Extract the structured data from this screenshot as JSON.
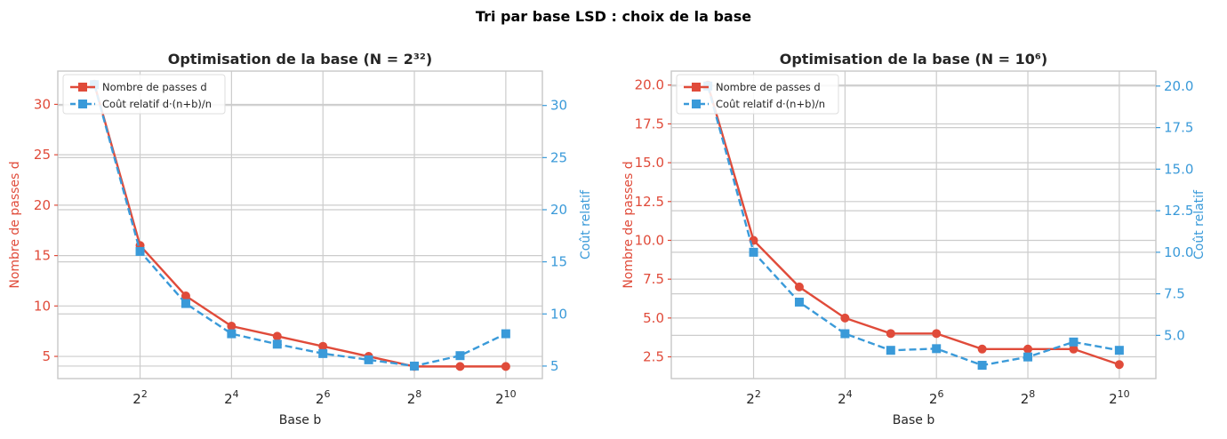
{
  "figure": {
    "suptitle": "Tri par base LSD : choix de la base"
  },
  "colors": {
    "passes": "#e04b3a",
    "cost": "#3a9ad9",
    "grid": "#cccccc",
    "frame": "#c8c8c8",
    "text": "#262626"
  },
  "chart_data": [
    {
      "type": "line",
      "title": "Optimisation de la base (N = 2³²)",
      "xlabel": "Base b",
      "ylabel_left": "Nombre de passes d",
      "ylabel_right": "Coût relatif",
      "x_scale": "log2",
      "x_exponents": [
        1,
        2,
        3,
        4,
        5,
        6,
        7,
        8,
        9,
        10
      ],
      "x_ticks": [
        2,
        4,
        6,
        8,
        10
      ],
      "x_tick_labels": [
        "2",
        "2",
        "2",
        "2",
        "2"
      ],
      "x_tick_exponents": [
        "2",
        "4",
        "6",
        "8",
        "10"
      ],
      "xlim_exp": [
        0.2,
        10.8
      ],
      "left_axis": {
        "ylim": [
          2.8,
          33.3
        ],
        "ticks": [
          5,
          10,
          15,
          20,
          25,
          30
        ],
        "tick_labels": [
          "5",
          "10",
          "15",
          "20",
          "25",
          "30"
        ]
      },
      "right_axis": {
        "ylim": [
          3.8,
          33.3
        ],
        "ticks": [
          5,
          10,
          15,
          20,
          25,
          30
        ],
        "tick_labels": [
          "5",
          "10",
          "15",
          "20",
          "25",
          "30"
        ]
      },
      "series": [
        {
          "name": "Nombre de passes d",
          "axis": "left",
          "marker": "circle",
          "style": "solid",
          "values": [
            32,
            16,
            11,
            8,
            7,
            6,
            5,
            4,
            4,
            4
          ]
        },
        {
          "name": "Coût relatif d·(n+b)/n",
          "axis": "right",
          "marker": "square",
          "style": "dashed",
          "values": [
            32,
            16,
            11,
            8.1,
            7.1,
            6.2,
            5.6,
            5.0,
            6.0,
            8.1
          ]
        }
      ],
      "legend": {
        "position": "top-left",
        "entries": [
          "Nombre de passes d",
          "Coût relatif d·(n+b)/n"
        ]
      }
    },
    {
      "type": "line",
      "title": "Optimisation de la base (N = 10⁶)",
      "xlabel": "Base b",
      "ylabel_left": "Nombre de passes d",
      "ylabel_right": "Coût relatif",
      "x_scale": "log2",
      "x_exponents": [
        1,
        2,
        3,
        4,
        5,
        6,
        7,
        8,
        9,
        10
      ],
      "x_ticks": [
        2,
        4,
        6,
        8,
        10
      ],
      "x_tick_labels": [
        "2",
        "2",
        "2",
        "2",
        "2"
      ],
      "x_tick_exponents": [
        "2",
        "4",
        "6",
        "8",
        "10"
      ],
      "xlim_exp": [
        0.2,
        10.8
      ],
      "left_axis": {
        "ylim": [
          1.1,
          20.9
        ],
        "ticks": [
          2.5,
          5.0,
          7.5,
          10.0,
          12.5,
          15.0,
          17.5,
          20.0
        ],
        "tick_labels": [
          "2.5",
          "5.0",
          "7.5",
          "10.0",
          "12.5",
          "15.0",
          "17.5",
          "20.0"
        ]
      },
      "right_axis": {
        "ylim": [
          2.4,
          20.9
        ],
        "ticks": [
          5.0,
          7.5,
          10.0,
          12.5,
          15.0,
          17.5,
          20.0
        ],
        "tick_labels": [
          "5.0",
          "7.5",
          "10.0",
          "12.5",
          "15.0",
          "17.5",
          "20.0"
        ]
      },
      "series": [
        {
          "name": "Nombre de passes d",
          "axis": "left",
          "marker": "circle",
          "style": "solid",
          "values": [
            20,
            10,
            7,
            5,
            4,
            4,
            3,
            3,
            3,
            2
          ]
        },
        {
          "name": "Coût relatif d·(n+b)/n",
          "axis": "right",
          "marker": "square",
          "style": "dashed",
          "values": [
            20,
            10,
            7,
            5.1,
            4.1,
            4.2,
            3.2,
            3.7,
            4.6,
            4.1
          ]
        }
      ],
      "legend": {
        "position": "top-left",
        "entries": [
          "Nombre de passes d",
          "Coût relatif d·(n+b)/n"
        ]
      }
    }
  ]
}
